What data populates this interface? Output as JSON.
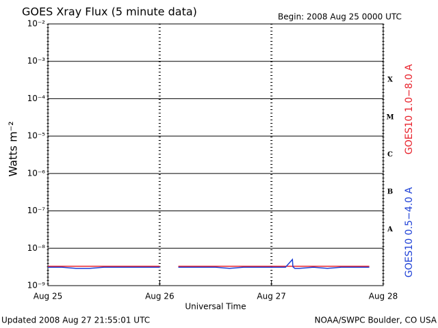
{
  "chart_data": {
    "type": "line",
    "title": "GOES Xray Flux (5 minute data)",
    "subtitle": "Begin:  2008 Aug 25 0000 UTC",
    "ylabel": "Watts m⁻²",
    "xlabel": "Universal Time",
    "footer_left": "Updated 2008 Aug 27 21:55:01 UTC",
    "footer_right": "NOAA/SWPC Boulder, CO USA",
    "log_y": true,
    "grid": true,
    "ylim": [
      1e-09,
      0.01
    ],
    "yticks": [
      {
        "value": 1e-09,
        "label": "10⁻⁹"
      },
      {
        "value": 1e-08,
        "label": "10⁻⁸"
      },
      {
        "value": 1e-07,
        "label": "10⁻⁷"
      },
      {
        "value": 1e-06,
        "label": "10⁻⁶"
      },
      {
        "value": 1e-05,
        "label": "10⁻⁵"
      },
      {
        "value": 0.0001,
        "label": "10⁻⁴"
      },
      {
        "value": 0.001,
        "label": "10⁻³"
      },
      {
        "value": 0.01,
        "label": "10⁻²"
      }
    ],
    "xlim": [
      0,
      72
    ],
    "xticks": [
      {
        "value": 0,
        "label": "Aug 25"
      },
      {
        "value": 24,
        "label": "Aug 26"
      },
      {
        "value": 48,
        "label": "Aug 27"
      },
      {
        "value": 72,
        "label": "Aug 28"
      }
    ],
    "flare_classes": [
      {
        "value": 1e-08,
        "label": "A"
      },
      {
        "value": 1e-07,
        "label": "B"
      },
      {
        "value": 1e-06,
        "label": "C"
      },
      {
        "value": 1e-05,
        "label": "M"
      },
      {
        "value": 0.0001,
        "label": "X"
      }
    ],
    "x": [
      0,
      3,
      6,
      9,
      12,
      15,
      18,
      21,
      24,
      27,
      28,
      30,
      33,
      36,
      39,
      42,
      45,
      48,
      51,
      52.5,
      52.6,
      53,
      54,
      57,
      60,
      63,
      66,
      69
    ],
    "series": [
      {
        "name": "GOES10 1.0−8.0 A",
        "color": "#e8202a",
        "values": [
          3.3e-09,
          3.3e-09,
          3.3e-09,
          3.3e-09,
          3.3e-09,
          3.3e-09,
          3.3e-09,
          3.3e-09,
          3.3e-09,
          null,
          3.3e-09,
          3.3e-09,
          3.3e-09,
          3.3e-09,
          3.3e-09,
          3.3e-09,
          3.3e-09,
          3.3e-09,
          3.3e-09,
          3.3e-09,
          3.3e-09,
          3.3e-09,
          3.3e-09,
          3.3e-09,
          3.3e-09,
          3.3e-09,
          3.3e-09,
          3.3e-09
        ]
      },
      {
        "name": "GOES10 0.5−4.0 A",
        "color": "#1c3fd6",
        "values": [
          3.1e-09,
          3.1e-09,
          2.9e-09,
          2.9e-09,
          3.1e-09,
          3.1e-09,
          3.1e-09,
          3.1e-09,
          3.1e-09,
          null,
          3.1e-09,
          3.1e-09,
          3.1e-09,
          3.1e-09,
          2.9e-09,
          3.1e-09,
          3.1e-09,
          3.1e-09,
          3.1e-09,
          5e-09,
          3.2e-09,
          2.9e-09,
          2.9e-09,
          3.1e-09,
          2.9e-09,
          3.1e-09,
          3.1e-09,
          3.1e-09
        ]
      }
    ]
  }
}
